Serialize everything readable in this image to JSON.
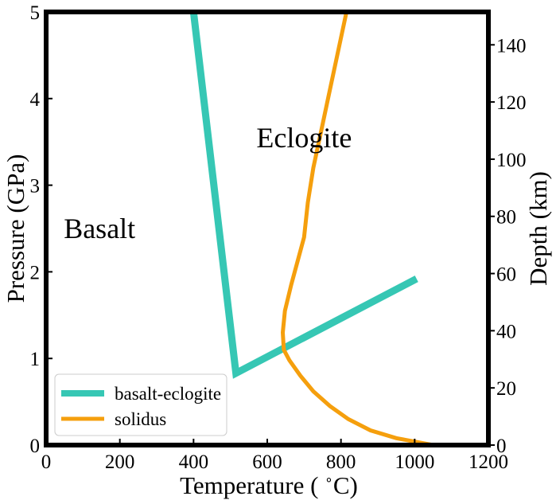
{
  "chart_data": {
    "type": "line",
    "xlabel": "Temperature ( $^\\circ$C)",
    "xlabel_parts": {
      "pre": "Temperature ( ",
      "deg": "∘",
      "post": "C)"
    },
    "ylabel": "Pressure (GPa)",
    "y2label": "Depth (km)",
    "xlim": [
      0,
      1200
    ],
    "ylim": [
      0,
      5
    ],
    "y2lim": [
      0,
      151.5
    ],
    "xticks": [
      "0",
      "200",
      "400",
      "600",
      "800",
      "1000",
      "1200"
    ],
    "yticks": [
      "0",
      "1",
      "2",
      "3",
      "4",
      "5"
    ],
    "y2ticks": [
      "0",
      "20",
      "40",
      "60",
      "80",
      "100",
      "120",
      "140"
    ],
    "grid": false,
    "legend_position": "lower-left",
    "annotations": [
      {
        "text": "Basalt",
        "x": 145,
        "y": 2.5
      },
      {
        "text": "Eclogite",
        "x": 700,
        "y": 3.55
      }
    ],
    "series": [
      {
        "name": "basalt-eclogite",
        "color": "#36c7b4",
        "x": [
          400,
          515,
          1005
        ],
        "y": [
          5.0,
          0.83,
          1.92
        ]
      },
      {
        "name": "solidus",
        "color": "#f59f0d",
        "x": [
          1050,
          950,
          880,
          820,
          770,
          725,
          690,
          660,
          645,
          642,
          648,
          665,
          700,
          710,
          725,
          745,
          765,
          790,
          815
        ],
        "y": [
          0,
          0.08,
          0.17,
          0.3,
          0.45,
          0.62,
          0.8,
          0.98,
          1.1,
          1.3,
          1.55,
          1.85,
          2.4,
          2.8,
          3.2,
          3.6,
          4.0,
          4.5,
          5.0
        ]
      }
    ]
  }
}
